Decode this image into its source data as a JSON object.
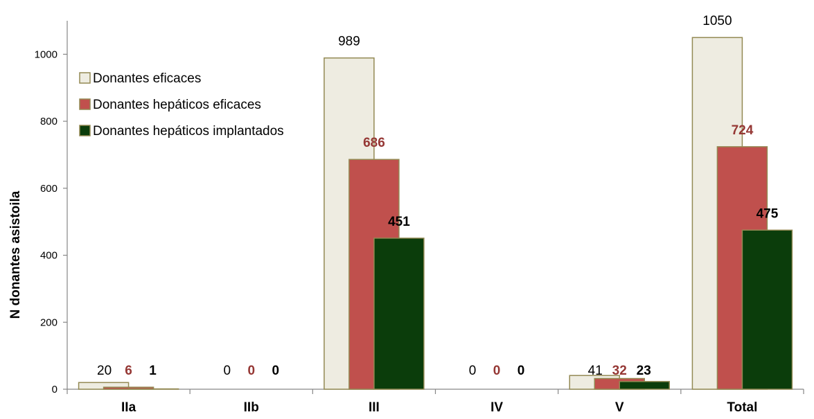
{
  "chart_data": {
    "type": "bar",
    "title": "",
    "xlabel": "",
    "ylabel": "N donantes asistoila",
    "ylim": [
      0,
      1100
    ],
    "yticks": [
      0,
      200,
      400,
      600,
      800,
      1000
    ],
    "grid": false,
    "legend_position": "top-left",
    "categories": [
      "IIa",
      "IIb",
      "III",
      "IV",
      "V",
      "Total"
    ],
    "series": [
      {
        "name": "Donantes eficaces",
        "values": [
          20,
          0,
          989,
          0,
          41,
          1050
        ],
        "fill": "#eeece1",
        "stroke": "#938953",
        "label_color": "#000000",
        "label_bold": false
      },
      {
        "name": "Donantes hepáticos eficaces",
        "values": [
          6,
          0,
          686,
          0,
          32,
          724
        ],
        "fill": "#c0504d",
        "stroke": "#938953",
        "label_color": "#953734",
        "label_bold": true
      },
      {
        "name": "Donantes hepáticos implantados",
        "values": [
          1,
          0,
          451,
          0,
          23,
          475
        ],
        "fill": "#0b3d0b",
        "stroke": "#938953",
        "label_color": "#000000",
        "label_bold": true
      }
    ]
  }
}
